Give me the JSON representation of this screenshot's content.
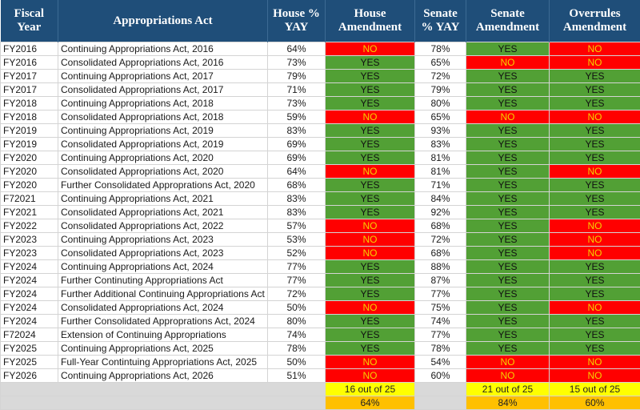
{
  "headers": {
    "year": [
      "Fiscal",
      "Year"
    ],
    "act": [
      "Appropriations Act"
    ],
    "house_pct": [
      "House %",
      "YAY"
    ],
    "house_amend": [
      "House",
      "Amendment"
    ],
    "senate_pct": [
      "Senate",
      "% YAY"
    ],
    "senate_amend": [
      "Senate",
      "Amendment"
    ],
    "overrules": [
      "Overrules",
      "Amendment"
    ]
  },
  "colors": {
    "header_bg": "#1f4e79",
    "yes_bg": "#52a035",
    "no_bg": "#ff0000",
    "no_text": "#f5d000",
    "count_bg": "#ffff00",
    "percent_bg": "#ffc000",
    "blank_bg": "#d9d9d9"
  },
  "rows": [
    {
      "year": "FY2016",
      "act": "Continuing Appropriations Act, 2016",
      "house_pct": "64%",
      "house": "NO",
      "senate_pct": "78%",
      "senate": "YES",
      "overrules": "NO"
    },
    {
      "year": "FY2016",
      "act": "Consolidated Appropriations Act, 2016",
      "house_pct": "73%",
      "house": "YES",
      "senate_pct": "65%",
      "senate": "NO",
      "overrules": "NO"
    },
    {
      "year": "FY2017",
      "act": "Continuing Appropriations Act, 2017",
      "house_pct": "79%",
      "house": "YES",
      "senate_pct": "72%",
      "senate": "YES",
      "overrules": "YES"
    },
    {
      "year": "FY2017",
      "act": "Consolidated Appropriations Act, 2017",
      "house_pct": "71%",
      "house": "YES",
      "senate_pct": "79%",
      "senate": "YES",
      "overrules": "YES"
    },
    {
      "year": "FY2018",
      "act": "Continuing Appropriations Act, 2018",
      "house_pct": "73%",
      "house": "YES",
      "senate_pct": "80%",
      "senate": "YES",
      "overrules": "YES"
    },
    {
      "year": "FY2018",
      "act": "Consolidated Appropriations Act, 2018",
      "house_pct": "59%",
      "house": "NO",
      "senate_pct": "65%",
      "senate": "NO",
      "overrules": "NO"
    },
    {
      "year": "FY2019",
      "act": "Continuing Appropriations Act, 2019",
      "house_pct": "83%",
      "house": "YES",
      "senate_pct": "93%",
      "senate": "YES",
      "overrules": "YES"
    },
    {
      "year": "FY2019",
      "act": "Consolidated Appropriations Act, 2019",
      "house_pct": "69%",
      "house": "YES",
      "senate_pct": "83%",
      "senate": "YES",
      "overrules": "YES"
    },
    {
      "year": "FY2020",
      "act": "Continuing Appropriations Act, 2020",
      "house_pct": "69%",
      "house": "YES",
      "senate_pct": "81%",
      "senate": "YES",
      "overrules": "YES"
    },
    {
      "year": "FY2020",
      "act": "Consolidated Appropriations Act, 2020",
      "house_pct": "64%",
      "house": "NO",
      "senate_pct": "81%",
      "senate": "YES",
      "overrules": "NO"
    },
    {
      "year": "FY2020",
      "act": "Further Consolidated Approprations Act, 2020",
      "house_pct": "68%",
      "house": "YES",
      "senate_pct": "71%",
      "senate": "YES",
      "overrules": "YES"
    },
    {
      "year": "F72021",
      "act": "Continuing Appropriations Act, 2021",
      "house_pct": "83%",
      "house": "YES",
      "senate_pct": "84%",
      "senate": "YES",
      "overrules": "YES"
    },
    {
      "year": "FY2021",
      "act": "Consolidated Appropriations Act, 2021",
      "house_pct": "83%",
      "house": "YES",
      "senate_pct": "92%",
      "senate": "YES",
      "overrules": "YES"
    },
    {
      "year": "FY2022",
      "act": "Consolidated Appropriations Act, 2022",
      "house_pct": "57%",
      "house": "NO",
      "senate_pct": "68%",
      "senate": "YES",
      "overrules": "NO"
    },
    {
      "year": "FY2023",
      "act": "Continuing Appropriations Act, 2023",
      "house_pct": "53%",
      "house": "NO",
      "senate_pct": "72%",
      "senate": "YES",
      "overrules": "NO"
    },
    {
      "year": "FY2023",
      "act": "Consolidated Appropriations Act, 2023",
      "house_pct": "52%",
      "house": "NO",
      "senate_pct": "68%",
      "senate": "YES",
      "overrules": "NO"
    },
    {
      "year": "FY2024",
      "act": "Continuing Appropriations Act, 2024",
      "house_pct": "77%",
      "house": "YES",
      "senate_pct": "88%",
      "senate": "YES",
      "overrules": "YES"
    },
    {
      "year": "FY2024",
      "act": "Further Continuting Appropriations Act",
      "house_pct": "77%",
      "house": "YES",
      "senate_pct": "87%",
      "senate": "YES",
      "overrules": "YES"
    },
    {
      "year": "FY2024",
      "act": "Further Additional Continuing Appropriations Act",
      "house_pct": "72%",
      "house": "YES",
      "senate_pct": "77%",
      "senate": "YES",
      "overrules": "YES"
    },
    {
      "year": "FY2024",
      "act": "Consolidated Appropriations Act, 2024",
      "house_pct": "50%",
      "house": "NO",
      "senate_pct": "75%",
      "senate": "YES",
      "overrules": "NO"
    },
    {
      "year": "FY2024",
      "act": "Further Consolidated Approprations Act, 2024",
      "house_pct": "80%",
      "house": "YES",
      "senate_pct": "74%",
      "senate": "YES",
      "overrules": "YES"
    },
    {
      "year": "F72024",
      "act": "Extension of Continuing Appropriations",
      "house_pct": "74%",
      "house": "YES",
      "senate_pct": "77%",
      "senate": "YES",
      "overrules": "YES"
    },
    {
      "year": "FY2025",
      "act": "Continuing Appropriations Act, 2025",
      "house_pct": "78%",
      "house": "YES",
      "senate_pct": "78%",
      "senate": "YES",
      "overrules": "YES"
    },
    {
      "year": "FY2025",
      "act": "Full-Year Contintuing Appropriations Act, 2025",
      "house_pct": "50%",
      "house": "NO",
      "senate_pct": "54%",
      "senate": "NO",
      "overrules": "NO"
    },
    {
      "year": "FY2026",
      "act": "Continuing Appropriations Act, 2026",
      "house_pct": "51%",
      "house": "NO",
      "senate_pct": "60%",
      "senate": "NO",
      "overrules": "NO"
    }
  ],
  "summary": {
    "house_count": "16 out of 25",
    "house_percent": "64%",
    "senate_count": "21 out of 25",
    "senate_percent": "84%",
    "overrules_count": "15 out of 25",
    "overrules_percent": "60%"
  }
}
